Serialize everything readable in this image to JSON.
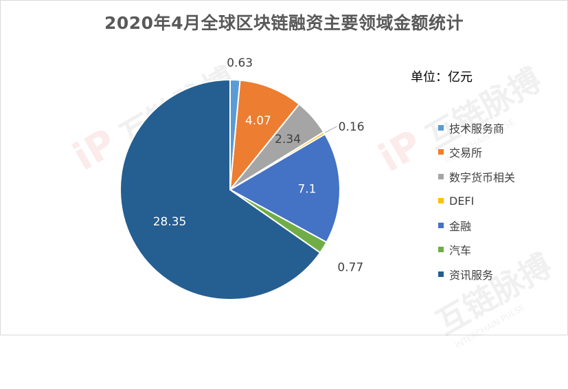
{
  "chart_data": {
    "type": "pie",
    "title": "2020年4月全球区块链融资主要领域金额统计",
    "unit_label": "单位：亿元",
    "categories": [
      "技术服务商",
      "交易所",
      "数字货币相关",
      "DEFI",
      "金融",
      "汽车",
      "资讯服务"
    ],
    "values": [
      0.63,
      4.07,
      2.34,
      0.16,
      7.1,
      0.77,
      28.35
    ],
    "data_labels": [
      "0.63",
      "4.07",
      "2.34",
      "0.16",
      "7.1",
      "0.77",
      "28.35"
    ],
    "colors": [
      "#5b9bd5",
      "#ed7d31",
      "#a5a5a5",
      "#ffc000",
      "#4472c4",
      "#70ad47",
      "#255e91"
    ],
    "legend_position": "right",
    "start_angle": "12 o'clock, clockwise",
    "grid": false
  },
  "watermark": {
    "text": "互链脉搏",
    "subtext": "INTERCHAIN PULSE"
  }
}
